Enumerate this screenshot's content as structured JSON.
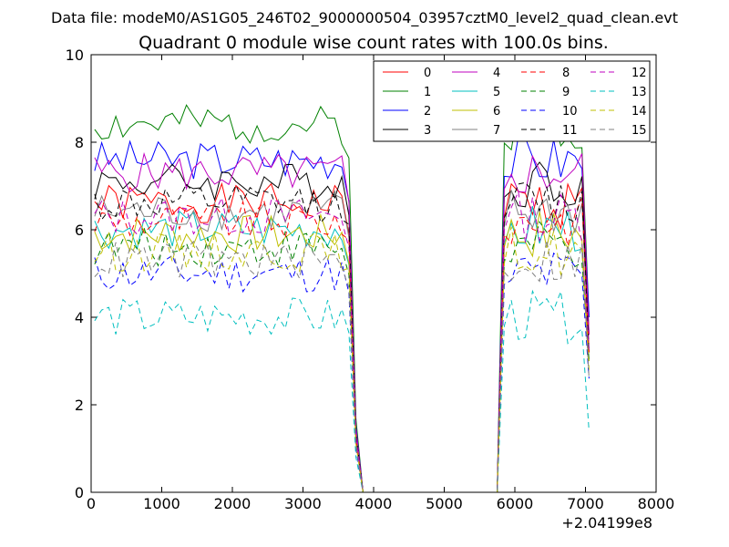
{
  "chart_data": {
    "type": "line",
    "suptitle": "Data file: modeM0/AS1G05_246T02_9000000504_03957cztM0_level2_quad_clean.evt",
    "title": "Quadrant 0 module wise count rates with 100.0s bins.",
    "xlabel": "",
    "ylabel": "",
    "x_offset_label": "+2.04199e8",
    "xlim": [
      0,
      8000
    ],
    "ylim": [
      0,
      10
    ],
    "xticks": [
      0,
      1000,
      2000,
      3000,
      4000,
      5000,
      6000,
      7000,
      8000
    ],
    "yticks": [
      0,
      2,
      4,
      6,
      8,
      10
    ],
    "grid": false,
    "legend_position": "top-right",
    "legend_columns": 4,
    "segments": [
      {
        "x_start": 50,
        "x_end": 3550,
        "x_step": 100
      },
      {
        "x_start": 5850,
        "x_end": 7050,
        "x_step": 100
      }
    ],
    "drop_x": [
      3650,
      3750,
      3850
    ],
    "gap_x": [
      3850,
      5750
    ],
    "series": [
      {
        "name": "0",
        "color": "#ff0000",
        "style": "solid",
        "level": 6.6,
        "seed": 1,
        "tail": [
          6.8,
          3.2,
          0
        ]
      },
      {
        "name": "1",
        "color": "#008000",
        "style": "solid",
        "level": 8.4,
        "seed": 2,
        "tail": [
          8.4,
          4.0,
          0
        ]
      },
      {
        "name": "2",
        "color": "#0000ff",
        "style": "solid",
        "level": 7.6,
        "seed": 3,
        "tail": [
          8.2,
          4.0,
          0
        ]
      },
      {
        "name": "3",
        "color": "#000000",
        "style": "solid",
        "level": 7.1,
        "seed": 4,
        "tail": [
          7.6,
          3.6,
          0
        ]
      },
      {
        "name": "4",
        "color": "#bf00bf",
        "style": "solid",
        "level": 7.3,
        "seed": 5,
        "tail": [
          7.6,
          3.6,
          0
        ]
      },
      {
        "name": "5",
        "color": "#00bfbf",
        "style": "solid",
        "level": 6.0,
        "seed": 6,
        "tail": [
          6.4,
          3.0,
          0
        ]
      },
      {
        "name": "6",
        "color": "#bfbf00",
        "style": "solid",
        "level": 5.9,
        "seed": 7,
        "tail": [
          6.2,
          3.0,
          0
        ]
      },
      {
        "name": "7",
        "color": "#808080",
        "style": "solid",
        "level": 6.4,
        "seed": 8,
        "tail": [
          6.8,
          3.2,
          0
        ]
      },
      {
        "name": "8",
        "color": "#ff0000",
        "style": "dashed",
        "level": 6.2,
        "seed": 9,
        "tail": [
          6.6,
          3.2,
          0
        ]
      },
      {
        "name": "9",
        "color": "#008000",
        "style": "dashed",
        "level": 5.6,
        "seed": 10,
        "tail": [
          6.0,
          3.0,
          0
        ]
      },
      {
        "name": "10",
        "color": "#0000ff",
        "style": "dashed",
        "level": 5.0,
        "seed": 11,
        "tail": [
          5.6,
          2.6,
          0
        ]
      },
      {
        "name": "11",
        "color": "#000000",
        "style": "dashed",
        "level": 6.6,
        "seed": 12,
        "tail": [
          6.8,
          3.2,
          0
        ]
      },
      {
        "name": "12",
        "color": "#bf00bf",
        "style": "dashed",
        "level": 6.3,
        "seed": 13,
        "tail": [
          6.6,
          3.2,
          0
        ]
      },
      {
        "name": "13",
        "color": "#00bfbf",
        "style": "dashed",
        "level": 4.0,
        "seed": 14,
        "tail": [
          4.4,
          1.4,
          0
        ]
      },
      {
        "name": "14",
        "color": "#bfbf00",
        "style": "dashed",
        "level": 5.5,
        "seed": 15,
        "tail": [
          5.8,
          2.8,
          0
        ]
      },
      {
        "name": "15",
        "color": "#808080",
        "style": "dashed",
        "level": 5.3,
        "seed": 16,
        "tail": [
          5.6,
          2.6,
          0
        ]
      }
    ]
  }
}
